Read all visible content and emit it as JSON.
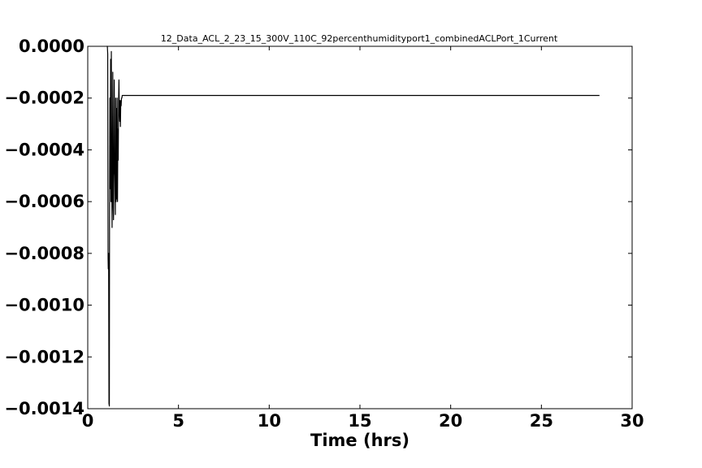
{
  "chart_data": {
    "type": "line",
    "title": "12_Data_ACL_2_23_15_300V_110C_92percenthumidityport1_combinedACLPort_1Current",
    "xlabel": "Time (hrs)",
    "ylabel": "",
    "xlim": [
      0,
      30
    ],
    "ylim": [
      -0.0014,
      0.0
    ],
    "xticks": [
      0,
      5,
      10,
      15,
      20,
      25,
      30
    ],
    "xtick_labels": [
      "0",
      "5",
      "10",
      "15",
      "20",
      "25",
      "30"
    ],
    "yticks": [
      0.0,
      -0.0002,
      -0.0004,
      -0.0006,
      -0.0008,
      -0.001,
      -0.0012,
      -0.0014
    ],
    "ytick_labels": [
      "0.0000",
      "−0.0002",
      "−0.0004",
      "−0.0006",
      "−0.0008",
      "−0.0010",
      "−0.0012",
      "−0.0014"
    ],
    "grid": false,
    "legend": "none",
    "line_color": "#000000",
    "series": [
      {
        "x": [
          1.05,
          1.08,
          1.1,
          1.12,
          1.13,
          1.15,
          1.17,
          1.19,
          1.2,
          1.22,
          1.24,
          1.26,
          1.28,
          1.3,
          1.32,
          1.34,
          1.36,
          1.38,
          1.4,
          1.42,
          1.44,
          1.46,
          1.48,
          1.5,
          1.52,
          1.54,
          1.56,
          1.58,
          1.6,
          1.62,
          1.64,
          1.66,
          1.68,
          1.7,
          1.72,
          1.74,
          1.76,
          1.78,
          1.8,
          1.82,
          1.84,
          1.86,
          1.88,
          1.9,
          1.92,
          1.95,
          2.0,
          3.0,
          5.0,
          10.0,
          15.0,
          20.0,
          25.0,
          28.2
        ],
        "y": [
          0.0,
          0.0,
          -3e-05,
          -0.00082,
          -0.00086,
          -0.0008,
          -0.00138,
          -0.00139,
          -0.0007,
          -0.0002,
          -0.00055,
          -5e-05,
          -0.0006,
          -2e-05,
          -0.0005,
          -0.0007,
          -0.00047,
          -0.0001,
          -0.0006,
          -0.00067,
          -0.0005,
          -0.00013,
          -0.00047,
          -0.0005,
          -0.00065,
          -0.0002,
          -0.0006,
          -0.00024,
          -0.00059,
          -0.0002,
          -0.0006,
          -0.00032,
          -0.00044,
          -0.00021,
          -0.00013,
          -0.00025,
          -0.00029,
          -0.00021,
          -0.00031,
          -0.00021,
          -0.00023,
          -0.0002,
          -0.0002,
          -0.00019,
          -0.00019,
          -0.00019,
          -0.00019,
          -0.00019,
          -0.00019,
          -0.00019,
          -0.00019,
          -0.00019,
          -0.00019,
          -0.00019
        ]
      }
    ]
  }
}
